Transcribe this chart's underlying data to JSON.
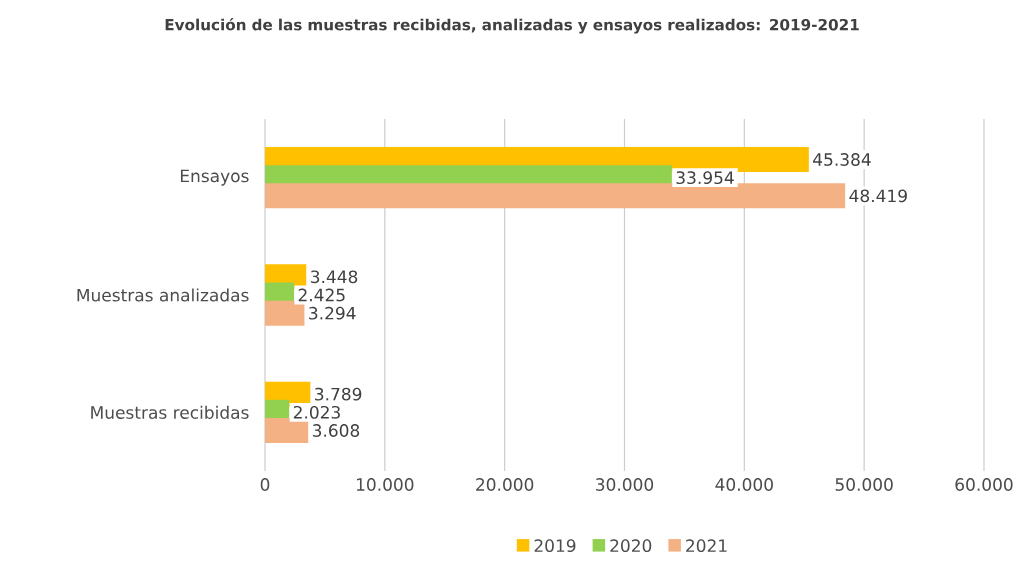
{
  "chart_data": {
    "type": "bar",
    "orientation": "horizontal",
    "title": "Evolución de las muestras recibidas, analizadas y ensayos realizados: 2019-2021",
    "categories": [
      "Ensayos",
      "Muestras analizadas",
      "Muestras recibidas"
    ],
    "series": [
      {
        "name": "2019",
        "color": "#ffc000",
        "values": [
          45384,
          3448,
          3789
        ],
        "value_labels": [
          "45.384",
          "3.448",
          "3.789"
        ]
      },
      {
        "name": "2020",
        "color": "#92d050",
        "values": [
          33954,
          2425,
          2023
        ],
        "value_labels": [
          "33.954",
          "2.425",
          "2.023"
        ]
      },
      {
        "name": "2021",
        "color": "#f4b183",
        "values": [
          48419,
          3294,
          3608
        ],
        "value_labels": [
          "48.419",
          "3.294",
          "3.608"
        ]
      }
    ],
    "xlim": [
      0,
      60000
    ],
    "xticks": [
      0,
      {
        "value": 10000,
        "label": "10.000"
      },
      {
        "value": 20000,
        "label": "20.000"
      },
      {
        "value": 30000,
        "label": "30.000"
      },
      {
        "value": 40000,
        "label": "40.000"
      },
      {
        "value": 50000,
        "label": "50.000"
      },
      {
        "value": 60000,
        "label": "60.000"
      }
    ],
    "grid": "x",
    "legend": "bottom"
  }
}
